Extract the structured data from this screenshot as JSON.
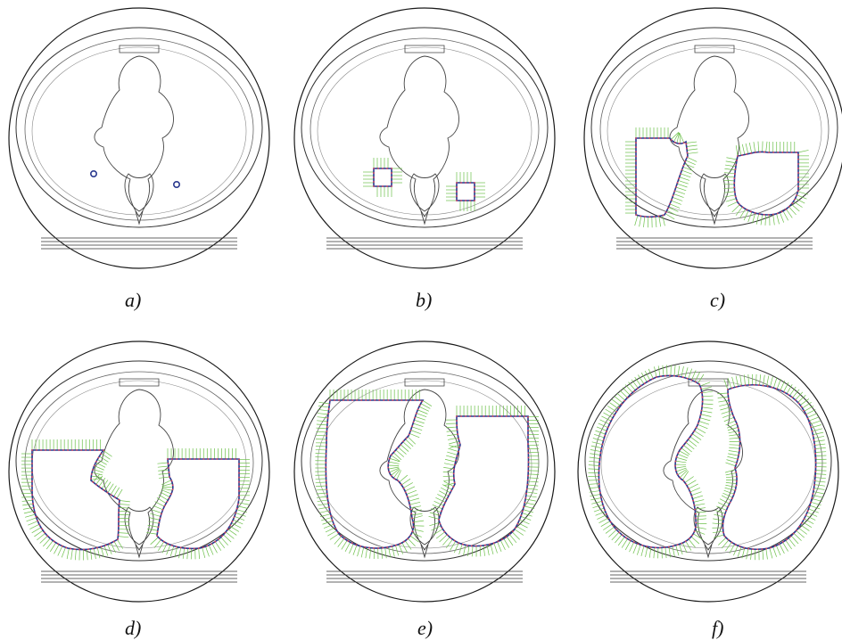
{
  "figure": {
    "panels": [
      {
        "id": "a",
        "label": "a)",
        "stage": "seed"
      },
      {
        "id": "b",
        "label": "b)",
        "stage": "small"
      },
      {
        "id": "c",
        "label": "c)",
        "stage": "medium"
      },
      {
        "id": "d",
        "label": "d)",
        "stage": "large"
      },
      {
        "id": "e",
        "label": "e)",
        "stage": "larger"
      },
      {
        "id": "f",
        "label": "f)",
        "stage": "final"
      }
    ],
    "colors": {
      "outline": "#1a1a1a",
      "contour": "#2b3a8f",
      "points": "#e0405a",
      "normals": "#6cc04a",
      "seed": "#2b3a8f"
    },
    "icons": {
      "scan": "ct-chest-slice",
      "seed": "seed-circle-marker",
      "contour": "active-contour-with-normals"
    }
  }
}
